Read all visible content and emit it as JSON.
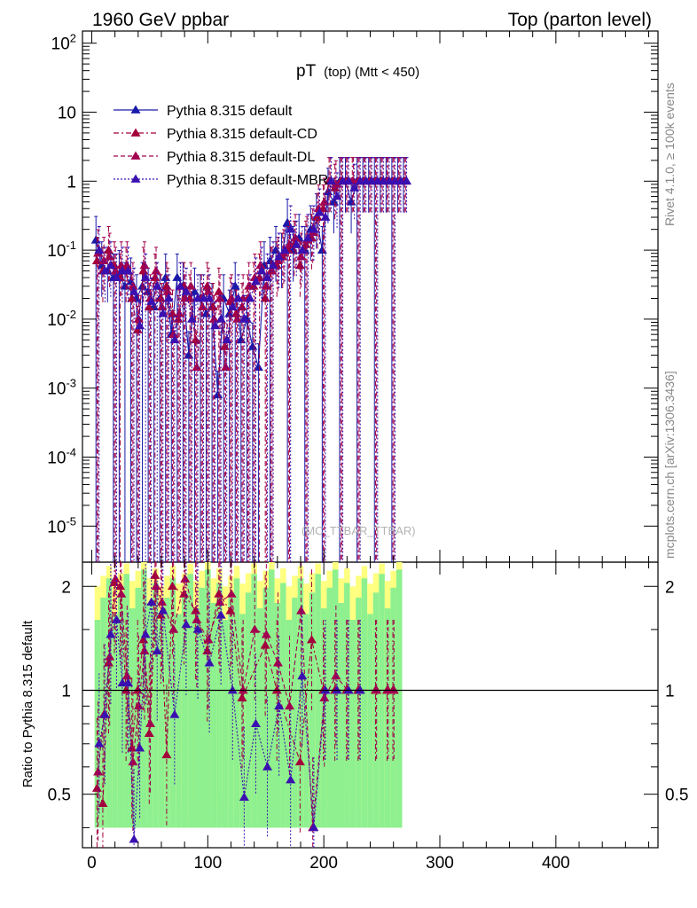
{
  "header": {
    "left": "1960 GeV ppbar",
    "right": "Top (parton level)"
  },
  "side": {
    "rivet": "Rivet 4.1.0, ≥ 100k events",
    "mcplots": "mcplots.cern.ch [arXiv:1306.3436]"
  },
  "watermark": "(MC_TTBAR_TTBAR)",
  "chart_data": {
    "type": "line",
    "title": "pT (top) (Mtt < 450)",
    "title_main": "pT",
    "title_sub": "(top) (Mtt < 450)",
    "xlabel": "",
    "ylabel_ratio": "Ratio to Pythia 8.315 default",
    "xlim": [
      -8,
      488
    ],
    "ylim": [
      3e-06,
      150
    ],
    "ratio_ylim": [
      0.35,
      2.35
    ],
    "yscale": "log",
    "x_ticks": [
      "0",
      "100",
      "200",
      "300",
      "400"
    ],
    "y_ticks": [
      "10^-5",
      "10^-4",
      "10^-3",
      "10^-2",
      "10^-1",
      "1",
      "10",
      "10^2"
    ],
    "ratio_ticks": [
      "0.5",
      "1",
      "2"
    ],
    "legend": [
      {
        "name": "Pythia 8.315 default",
        "color": "#1a1aaa",
        "dash": "solid"
      },
      {
        "name": "Pythia 8.315 default-CD",
        "color": "#a3003b",
        "dash": "dashdot"
      },
      {
        "name": "Pythia 8.315 default-DL",
        "color": "#a3004f",
        "dash": "dash"
      },
      {
        "name": "Pythia 8.315 default-MBR",
        "color": "#3a10b0",
        "dash": "dot"
      }
    ],
    "series": [
      {
        "name": "Pythia 8.315 default",
        "x": [
          5,
          10,
          15,
          20,
          25,
          30,
          35,
          40,
          45,
          50,
          55,
          60,
          65,
          70,
          75,
          80,
          85,
          90,
          95,
          100,
          105,
          110,
          115,
          120,
          125,
          130,
          135,
          140,
          145,
          150,
          155,
          160,
          165,
          170,
          175,
          180,
          185,
          190,
          195,
          200,
          205,
          210,
          215,
          220,
          225,
          230,
          235,
          240,
          245,
          250,
          255,
          260,
          265,
          270
        ],
        "y": [
          0.14,
          0.06,
          0.05,
          0.04,
          0.045,
          0.03,
          0.035,
          0.02,
          0.03,
          0.025,
          0.015,
          0.02,
          0.04,
          0.006,
          0.04,
          0.03,
          0.003,
          0.025,
          0.02,
          0.012,
          0.015,
          0.0008,
          0.02,
          0.012,
          0.03,
          0.005,
          0.01,
          0.004,
          0.002,
          0.06,
          0.07,
          0.1,
          0.08,
          0.25,
          0.1,
          0.15,
          0.1,
          0.2,
          0.3,
          0.1,
          0.7,
          0.5,
          1.0,
          1.0,
          0.5,
          1.0,
          1.0,
          1.0,
          1.0,
          1.0,
          1.0,
          1.0,
          1.0,
          1.0
        ]
      },
      {
        "name": "Pythia 8.315 default-CD",
        "x": [
          5,
          10,
          15,
          20,
          25,
          30,
          35,
          40,
          45,
          50,
          55,
          60,
          65,
          70,
          75,
          80,
          85,
          90,
          95,
          100,
          105,
          110,
          115,
          120,
          125,
          130,
          135,
          140,
          145,
          150,
          155,
          160,
          165,
          170,
          175,
          180,
          185,
          190,
          195,
          200,
          205,
          210,
          215,
          220,
          225,
          230,
          235,
          240,
          245,
          250,
          255,
          260,
          265,
          270
        ],
        "y": [
          0.07,
          0.05,
          0.1,
          0.06,
          0.04,
          0.05,
          0.02,
          0.007,
          0.05,
          0.015,
          0.04,
          0.02,
          0.03,
          0.012,
          0.01,
          0.03,
          0.02,
          0.005,
          0.02,
          0.03,
          0.015,
          0.025,
          0.004,
          0.018,
          0.012,
          0.015,
          0.02,
          0.03,
          0.04,
          0.02,
          0.05,
          0.06,
          0.08,
          0.1,
          0.12,
          0.06,
          0.12,
          0.15,
          0.3,
          0.4,
          1.0,
          0.8,
          1.0,
          1.0,
          1.0,
          1.0,
          1.0,
          1.0,
          1.0,
          1.0,
          1.0,
          1.0,
          1.0,
          1.0
        ]
      },
      {
        "name": "Pythia 8.315 default-DL",
        "x": [
          5,
          10,
          15,
          20,
          25,
          30,
          35,
          40,
          45,
          50,
          55,
          60,
          65,
          70,
          75,
          80,
          85,
          90,
          95,
          100,
          105,
          110,
          115,
          120,
          125,
          130,
          135,
          140,
          145,
          150,
          155,
          160,
          165,
          170,
          175,
          180,
          185,
          190,
          195,
          200,
          205,
          210,
          215,
          220,
          225,
          230,
          235,
          240,
          245,
          250,
          255,
          260,
          265,
          270
        ],
        "y": [
          0.09,
          0.07,
          0.08,
          0.05,
          0.06,
          0.06,
          0.03,
          0.01,
          0.06,
          0.02,
          0.05,
          0.015,
          0.025,
          0.006,
          0.012,
          0.02,
          0.03,
          0.002,
          0.015,
          0.025,
          0.01,
          0.02,
          0.002,
          0.02,
          0.01,
          0.02,
          0.03,
          0.04,
          0.06,
          0.03,
          0.05,
          0.07,
          0.09,
          0.12,
          0.15,
          0.08,
          0.14,
          0.18,
          0.4,
          0.5,
          1.0,
          0.9,
          1.0,
          1.0,
          1.0,
          1.0,
          1.0,
          1.0,
          1.0,
          1.0,
          1.0,
          1.0,
          1.0,
          1.0
        ]
      },
      {
        "name": "Pythia 8.315 default-MBR",
        "x": [
          5,
          10,
          15,
          20,
          25,
          30,
          35,
          40,
          45,
          50,
          55,
          60,
          65,
          70,
          75,
          80,
          85,
          90,
          95,
          100,
          105,
          110,
          115,
          120,
          125,
          130,
          135,
          140,
          145,
          150,
          155,
          160,
          165,
          170,
          175,
          180,
          185,
          190,
          195,
          200,
          205,
          210,
          215,
          220,
          225,
          230,
          235,
          240,
          245,
          250,
          255,
          260,
          265,
          270
        ],
        "y": [
          0.1,
          0.05,
          0.06,
          0.04,
          0.05,
          0.05,
          0.025,
          0.008,
          0.04,
          0.018,
          0.03,
          0.012,
          0.02,
          0.005,
          0.03,
          0.025,
          0.01,
          0.02,
          0.02,
          0.02,
          0.008,
          0.01,
          0.005,
          0.015,
          0.02,
          0.01,
          0.02,
          0.035,
          0.05,
          0.04,
          0.06,
          0.08,
          0.1,
          0.2,
          0.12,
          0.1,
          0.15,
          0.2,
          0.35,
          0.3,
          1.0,
          0.6,
          1.0,
          1.0,
          0.8,
          1.0,
          1.0,
          1.0,
          1.0,
          1.0,
          1.0,
          1.0,
          1.0,
          1.0
        ]
      }
    ],
    "ratio_series": [
      {
        "name": "Pythia 8.315 default-CD",
        "x": [
          5,
          10,
          15,
          20,
          25,
          30,
          35,
          40,
          45,
          50,
          55,
          60,
          65,
          70,
          80,
          90,
          100,
          110,
          120,
          130,
          150,
          160,
          180,
          190,
          200,
          210,
          220,
          230,
          245,
          255,
          260
        ],
        "y": [
          0.52,
          0.47,
          1.2,
          2.05,
          2.0,
          1.0,
          0.68,
          1.0,
          1.4,
          0.75,
          2.15,
          1.65,
          0.65,
          2.0,
          1.9,
          1.7,
          1.3,
          1.9,
          1.7,
          0.95,
          1.35,
          1.0,
          0.62,
          1.4,
          1.0,
          1.0,
          1.0,
          1.0,
          1.0,
          1.0,
          1.0
        ]
      },
      {
        "name": "Pythia 8.315 default-DL",
        "x": [
          5,
          10,
          15,
          20,
          25,
          30,
          35,
          40,
          45,
          50,
          55,
          60,
          70,
          80,
          90,
          100,
          110,
          120,
          130,
          140,
          150,
          160,
          170,
          180,
          190,
          200,
          210,
          220,
          230,
          245,
          255,
          260
        ],
        "y": [
          0.58,
          0.85,
          1.25,
          2.1,
          1.9,
          1.1,
          0.62,
          0.9,
          1.3,
          0.8,
          2.0,
          1.8,
          1.5,
          2.1,
          1.6,
          1.4,
          1.8,
          1.9,
          1.0,
          1.5,
          1.45,
          1.2,
          0.9,
          1.7,
          0.4,
          0.95,
          1.1,
          1.0,
          1.0,
          1.0,
          1.0,
          1.0
        ]
      },
      {
        "name": "Pythia 8.315 default-MBR",
        "x": [
          5,
          10,
          15,
          20,
          25,
          30,
          35,
          40,
          45,
          50,
          55,
          60,
          70,
          80,
          90,
          100,
          110,
          120,
          130,
          140,
          150,
          160,
          170,
          180,
          190,
          200,
          210,
          220,
          230
        ],
        "y": [
          0.7,
          0.85,
          1.45,
          1.6,
          1.05,
          1.05,
          0.37,
          0.68,
          1.45,
          1.8,
          1.3,
          1.7,
          0.85,
          1.55,
          1.5,
          1.2,
          1.65,
          1.0,
          0.49,
          0.8,
          0.6,
          0.9,
          0.55,
          1.1,
          0.4,
          1.0,
          1.0,
          1.0,
          1.0
        ]
      }
    ]
  }
}
